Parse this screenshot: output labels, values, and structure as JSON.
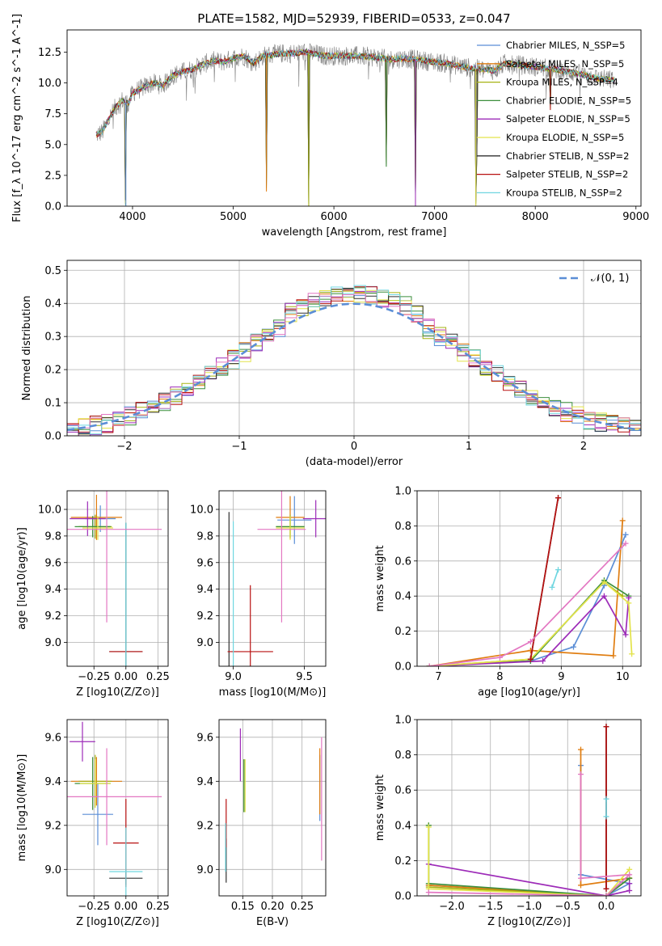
{
  "chart_data": [
    {
      "id": "spectrum",
      "type": "line",
      "title": "PLATE=1582, MJD=52939, FIBERID=0533, z=0.047",
      "xlabel": "wavelength [Angstrom, rest frame]",
      "ylabel": "Flux [f_λ 10^-17 erg cm^-2 s^-1 A^-1]",
      "xlim": [
        3350,
        9050
      ],
      "ylim": [
        0,
        14.3
      ],
      "xticks": [
        4000,
        5000,
        6000,
        7000,
        8000,
        9000
      ],
      "yticks": [
        0.0,
        2.5,
        5.0,
        7.5,
        10.0,
        12.5
      ],
      "grid": false,
      "legend_position": "top-right",
      "series": [
        {
          "name": "Chabrier MILES, N_SSP=5",
          "color": "#5b8ed6"
        },
        {
          "name": "Salpeter MILES, N_SSP=5",
          "color": "#e07d10"
        },
        {
          "name": "Kroupa MILES, N_SSP=4",
          "color": "#a6b312"
        },
        {
          "name": "Chabrier ELODIE, N_SSP=5",
          "color": "#3c8f3c"
        },
        {
          "name": "Salpeter ELODIE, N_SSP=5",
          "color": "#9d2bb8"
        },
        {
          "name": "Kroupa ELODIE, N_SSP=5",
          "color": "#e3e34a"
        },
        {
          "name": "Chabrier STELIB, N_SSP=2",
          "color": "#303030"
        },
        {
          "name": "Salpeter STELIB, N_SSP=2",
          "color": "#b81010"
        },
        {
          "name": "Kroupa STELIB, N_SSP=2",
          "color": "#6fd6e0"
        }
      ],
      "data_color": "#808080",
      "continuum": [
        [
          3640,
          5.8
        ],
        [
          3700,
          6.0
        ],
        [
          3760,
          7.0
        ],
        [
          3830,
          8.0
        ],
        [
          3900,
          8.6
        ],
        [
          3960,
          8.3
        ],
        [
          4000,
          9.2
        ],
        [
          4100,
          9.6
        ],
        [
          4200,
          10.0
        ],
        [
          4300,
          9.8
        ],
        [
          4400,
          10.6
        ],
        [
          4500,
          10.9
        ],
        [
          4600,
          11.1
        ],
        [
          4700,
          11.5
        ],
        [
          4800,
          11.8
        ],
        [
          4900,
          11.7
        ],
        [
          5000,
          12.0
        ],
        [
          5100,
          12.2
        ],
        [
          5200,
          11.6
        ],
        [
          5300,
          12.2
        ],
        [
          5400,
          12.3
        ],
        [
          5500,
          12.4
        ],
        [
          5600,
          12.4
        ],
        [
          5700,
          12.5
        ],
        [
          5800,
          12.4
        ],
        [
          5900,
          12.2
        ],
        [
          6000,
          12.2
        ],
        [
          6200,
          12.2
        ],
        [
          6400,
          12.1
        ],
        [
          6550,
          11.9
        ],
        [
          6700,
          12.0
        ],
        [
          6900,
          11.8
        ],
        [
          7100,
          11.6
        ],
        [
          7300,
          11.3
        ],
        [
          7450,
          11.1
        ],
        [
          7600,
          11.0
        ],
        [
          7700,
          11.6
        ],
        [
          7800,
          11.5
        ],
        [
          8000,
          11.3
        ],
        [
          8200,
          11.1
        ],
        [
          8400,
          10.8
        ],
        [
          8600,
          10.4
        ],
        [
          8790,
          10.2
        ]
      ],
      "absorption_dips": [
        [
          3934,
          0.0
        ],
        [
          5330,
          1.2
        ],
        [
          5750,
          0.0
        ],
        [
          6520,
          3.2
        ],
        [
          6810,
          0.0
        ],
        [
          7410,
          0.0
        ],
        [
          7420,
          4.0
        ],
        [
          8150,
          7.8
        ]
      ]
    },
    {
      "id": "residuals",
      "type": "line",
      "xlabel": "(data-model)/error",
      "ylabel": "Normed distribution",
      "xlim": [
        -2.5,
        2.5
      ],
      "ylim": [
        0,
        0.53
      ],
      "xticks": [
        -2,
        -1,
        0,
        1,
        2
      ],
      "yticks": [
        0.0,
        0.1,
        0.2,
        0.3,
        0.4,
        0.5
      ],
      "grid": true,
      "legend_position": "top-right",
      "reference_curve": {
        "name": "𝒩(0, 1)",
        "color": "#5b8ed6",
        "style": "dashed"
      },
      "bin_width": 0.1
    },
    {
      "id": "age-vs-Z",
      "type": "scatter",
      "xlabel": "Z [log10(Z/Z⊙)]",
      "ylabel": "age  [log10(age/yr)]",
      "xlim": [
        -0.46,
        0.33
      ],
      "ylim": [
        8.82,
        10.14
      ],
      "xticks": [
        -0.25,
        0.0,
        0.25
      ],
      "yticks": [
        9.0,
        9.2,
        9.4,
        9.6,
        9.8,
        10.0
      ],
      "grid": true,
      "points": [
        {
          "series": "Chabrier MILES, N_SSP=5",
          "x": -0.2,
          "xerr": 0.12,
          "y": 9.93,
          "yerr": 0.1
        },
        {
          "series": "Salpeter MILES, N_SSP=5",
          "x": -0.23,
          "xerr": 0.2,
          "y": 9.94,
          "yerr": 0.17
        },
        {
          "series": "Kroupa MILES, N_SSP=4",
          "x": -0.24,
          "xerr": 0.13,
          "y": 9.87,
          "yerr": 0.09
        },
        {
          "series": "Chabrier ELODIE, N_SSP=5",
          "x": -0.26,
          "xerr": 0.14,
          "y": 9.87,
          "yerr": 0.08
        },
        {
          "series": "Salpeter ELODIE, N_SSP=5",
          "x": -0.3,
          "xerr": 0.14,
          "y": 9.93,
          "yerr": 0.13
        },
        {
          "series": "Kroupa ELODIE, N_SSP=5",
          "x": -0.22,
          "xerr": 0.12,
          "y": 9.86,
          "yerr": 0.09
        },
        {
          "series": "Chabrier STELIB, N_SSP=2",
          "x": 0.0,
          "xerr": 0.13,
          "y": 8.93,
          "yerr": 0.97
        },
        {
          "series": "Salpeter STELIB, N_SSP=2",
          "x": 0.0,
          "xerr": 0.13,
          "y": 8.93,
          "yerr": 0.0
        },
        {
          "series": "Kroupa STELIB, N_SSP=2",
          "x": 0.0,
          "xerr": 0.0,
          "y": 8.93,
          "yerr": 0.97
        },
        {
          "series": "pink",
          "x": -0.15,
          "xerr": 0.43,
          "y": 9.85,
          "yerr": 0.7
        }
      ]
    },
    {
      "id": "age-vs-mass",
      "type": "scatter",
      "xlabel": "mass [log10(M/M⊙)]",
      "xlim": [
        8.9,
        9.65
      ],
      "ylim": [
        8.82,
        10.14
      ],
      "xticks": [
        9.0,
        9.5
      ],
      "yticks": [
        9.0,
        9.2,
        9.4,
        9.6,
        9.8,
        10.0
      ],
      "grid": true,
      "points": [
        {
          "series": "Chabrier MILES, N_SSP=5",
          "x": 9.43,
          "xerr": 0.12,
          "y": 9.92,
          "yerr": 0.18
        },
        {
          "series": "Salpeter MILES, N_SSP=5",
          "x": 9.4,
          "xerr": 0.1,
          "y": 9.94,
          "yerr": 0.16
        },
        {
          "series": "Kroupa MILES, N_SSP=4",
          "x": 9.4,
          "xerr": 0.1,
          "y": 9.87,
          "yerr": 0.09
        },
        {
          "series": "Chabrier ELODIE, N_SSP=5",
          "x": 9.4,
          "xerr": 0.1,
          "y": 9.87,
          "yerr": 0.08
        },
        {
          "series": "Salpeter ELODIE, N_SSP=5",
          "x": 9.58,
          "xerr": 0.09,
          "y": 9.93,
          "yerr": 0.14
        },
        {
          "series": "Kroupa ELODIE, N_SSP=5",
          "x": 9.4,
          "xerr": 0.1,
          "y": 9.86,
          "yerr": 0.09
        },
        {
          "series": "Chabrier STELIB, N_SSP=2",
          "x": 8.97,
          "xerr": 0.0,
          "y": 8.93,
          "yerr": 1.05
        },
        {
          "series": "Salpeter STELIB, N_SSP=2",
          "x": 9.12,
          "xerr": 0.16,
          "y": 8.93,
          "yerr": 0.5
        },
        {
          "series": "Kroupa STELIB, N_SSP=2",
          "x": 9.0,
          "xerr": 0.0,
          "y": 8.93,
          "yerr": 0.98
        },
        {
          "series": "pink",
          "x": 9.34,
          "xerr": 0.17,
          "y": 9.85,
          "yerr": 0.7
        }
      ]
    },
    {
      "id": "mass-weight-vs-age",
      "type": "line",
      "xlabel": "age  [log10(age/yr)]",
      "ylabel": "mass weight",
      "xlim": [
        6.65,
        10.3
      ],
      "ylim": [
        0,
        1
      ],
      "xticks": [
        7,
        8,
        9,
        10
      ],
      "yticks": [
        0.0,
        0.2,
        0.4,
        0.6,
        0.8,
        1.0
      ],
      "grid": true,
      "series": [
        {
          "name": "Chabrier MILES, N_SSP=5",
          "x": [
            6.85,
            8.5,
            9.2,
            9.7,
            10.05
          ],
          "y": [
            0.0,
            0.03,
            0.11,
            0.46,
            0.75
          ]
        },
        {
          "name": "Salpeter MILES, N_SSP=5",
          "x": [
            6.85,
            8.5,
            9.85,
            10.0
          ],
          "y": [
            0.0,
            0.09,
            0.06,
            0.83
          ]
        },
        {
          "name": "Kroupa MILES, N_SSP=4",
          "x": [
            6.85,
            8.5,
            9.7,
            10.0
          ],
          "y": [
            0.0,
            0.04,
            0.48,
            0.4
          ]
        },
        {
          "name": "Chabrier ELODIE, N_SSP=5",
          "x": [
            6.85,
            8.5,
            9.7,
            10.1
          ],
          "y": [
            0.0,
            0.03,
            0.49,
            0.4
          ]
        },
        {
          "name": "Salpeter ELODIE, N_SSP=5",
          "x": [
            6.85,
            8.7,
            9.7,
            10.05,
            10.1
          ],
          "y": [
            0.0,
            0.03,
            0.4,
            0.18,
            0.39
          ]
        },
        {
          "name": "Kroupa ELODIE, N_SSP=5",
          "x": [
            6.85,
            8.5,
            9.7,
            10.1,
            10.15
          ],
          "y": [
            0.0,
            0.04,
            0.48,
            0.36,
            0.07
          ]
        },
        {
          "name": "Chabrier STELIB, N_SSP=2",
          "x": [
            8.5,
            8.95
          ],
          "y": [
            0.04,
            0.96
          ]
        },
        {
          "name": "Salpeter STELIB, N_SSP=2",
          "x": [
            8.5,
            8.95
          ],
          "y": [
            0.04,
            0.96
          ]
        },
        {
          "name": "Kroupa STELIB, N_SSP=2",
          "x": [
            8.85,
            8.95
          ],
          "y": [
            0.45,
            0.55
          ]
        },
        {
          "name": "pink",
          "x": [
            6.85,
            8.0,
            8.5,
            10.05
          ],
          "y": [
            0.0,
            0.05,
            0.14,
            0.7
          ]
        }
      ]
    },
    {
      "id": "mass-vs-Z",
      "type": "scatter",
      "xlabel": "Z [log10(Z/Z⊙)]",
      "ylabel": "mass [log10(M/M⊙)]",
      "xlim": [
        -0.46,
        0.33
      ],
      "ylim": [
        8.88,
        9.68
      ],
      "xticks": [
        -0.25,
        0.0,
        0.25
      ],
      "yticks": [
        9.0,
        9.2,
        9.4,
        9.6
      ],
      "grid": true,
      "points": [
        {
          "series": "Chabrier MILES, N_SSP=5",
          "x": -0.22,
          "xerr": 0.12,
          "y": 9.25,
          "yerr": 0.14
        },
        {
          "series": "Salpeter MILES, N_SSP=5",
          "x": -0.23,
          "xerr": 0.2,
          "y": 9.4,
          "yerr": 0.11
        },
        {
          "series": "Kroupa MILES, N_SSP=4",
          "x": -0.24,
          "xerr": 0.13,
          "y": 9.4,
          "yerr": 0.12
        },
        {
          "series": "Chabrier ELODIE, N_SSP=5",
          "x": -0.26,
          "xerr": 0.14,
          "y": 9.39,
          "yerr": 0.12
        },
        {
          "series": "Salpeter ELODIE, N_SSP=5",
          "x": -0.34,
          "xerr": 0.1,
          "y": 9.58,
          "yerr": 0.09
        },
        {
          "series": "Kroupa ELODIE, N_SSP=5",
          "x": -0.24,
          "xerr": 0.12,
          "y": 9.39,
          "yerr": 0.11
        },
        {
          "series": "Chabrier STELIB, N_SSP=2",
          "x": 0.0,
          "xerr": 0.13,
          "y": 8.96,
          "yerr": 0.03
        },
        {
          "series": "Salpeter STELIB, N_SSP=2",
          "x": 0.0,
          "xerr": 0.1,
          "y": 9.12,
          "yerr": 0.2
        },
        {
          "series": "Kroupa STELIB, N_SSP=2",
          "x": 0.0,
          "xerr": 0.13,
          "y": 8.99,
          "yerr": 0.2
        },
        {
          "series": "pink",
          "x": -0.15,
          "xerr": 0.43,
          "y": 9.33,
          "yerr": 0.22
        }
      ]
    },
    {
      "id": "mass-vs-EBV",
      "type": "scatter",
      "xlabel": "E(B-V)",
      "xlim": [
        0.11,
        0.29
      ],
      "ylim": [
        8.88,
        9.68
      ],
      "xticks": [
        0.15,
        0.2,
        0.25
      ],
      "yticks": [
        9.0,
        9.2,
        9.4,
        9.6
      ],
      "grid": true,
      "points": [
        {
          "series": "Chabrier MILES, N_SSP=5",
          "x": 0.28,
          "y": 9.37,
          "yerr": 0.15
        },
        {
          "series": "Salpeter MILES, N_SSP=5",
          "x": 0.28,
          "y": 9.4,
          "yerr": 0.15
        },
        {
          "series": "Kroupa MILES, N_SSP=4",
          "x": 0.152,
          "y": 9.38,
          "yerr": 0.12
        },
        {
          "series": "Chabrier ELODIE, N_SSP=5",
          "x": 0.152,
          "y": 9.38,
          "yerr": 0.12
        },
        {
          "series": "Salpeter ELODIE, N_SSP=5",
          "x": 0.146,
          "y": 9.52,
          "yerr": 0.12
        },
        {
          "series": "Kroupa ELODIE, N_SSP=5",
          "x": 0.154,
          "y": 9.38,
          "yerr": 0.12
        },
        {
          "series": "Chabrier STELIB, N_SSP=2",
          "x": 0.122,
          "y": 9.04,
          "yerr": 0.1
        },
        {
          "series": "Salpeter STELIB, N_SSP=2",
          "x": 0.122,
          "y": 9.21,
          "yerr": 0.11
        },
        {
          "series": "Kroupa STELIB, N_SSP=2",
          "x": 0.121,
          "y": 9.1,
          "yerr": 0.11
        },
        {
          "series": "pink",
          "x": 0.283,
          "y": 9.32,
          "yerr": 0.28
        }
      ]
    },
    {
      "id": "mass-weight-vs-Z",
      "type": "line",
      "xlabel": "Z [log10(Z/Z⊙)]",
      "ylabel": "mass weight",
      "xlim": [
        -2.45,
        0.45
      ],
      "ylim": [
        0,
        1
      ],
      "xticks": [
        -2.0,
        -1.5,
        -1.0,
        -0.5,
        0.0
      ],
      "yticks": [
        0.0,
        0.2,
        0.4,
        0.6,
        0.8,
        1.0
      ],
      "grid": true,
      "series": [
        {
          "name": "Chabrier MILES, N_SSP=5",
          "x": [
            -2.3,
            0.0,
            0.3,
            -0.33,
            -0.33
          ],
          "y": [
            0.06,
            0.0,
            0.07,
            0.12,
            0.74
          ]
        },
        {
          "name": "Salpeter MILES, N_SSP=5",
          "x": [
            -2.3,
            0.0,
            0.3,
            -0.33,
            -0.33
          ],
          "y": [
            0.06,
            0.0,
            0.1,
            0.06,
            0.83
          ]
        },
        {
          "name": "Kroupa MILES, N_SSP=4",
          "x": [
            -2.3,
            -2.3,
            0.0,
            0.3
          ],
          "y": [
            0.4,
            0.05,
            0.0,
            0.1
          ]
        },
        {
          "name": "Chabrier ELODIE, N_SSP=5",
          "x": [
            -2.3,
            -2.3,
            0.0,
            0.3
          ],
          "y": [
            0.4,
            0.07,
            0.0,
            0.1
          ]
        },
        {
          "name": "Salpeter ELODIE, N_SSP=5",
          "x": [
            -2.3,
            0.0,
            0.3,
            0.3
          ],
          "y": [
            0.18,
            0.0,
            0.03,
            0.07
          ]
        },
        {
          "name": "Kroupa ELODIE, N_SSP=5",
          "x": [
            -2.3,
            -2.3,
            0.0,
            0.3
          ],
          "y": [
            0.39,
            0.04,
            0.0,
            0.15
          ]
        },
        {
          "name": "Chabrier STELIB, N_SSP=2",
          "x": [
            0.0,
            0.0
          ],
          "y": [
            0.04,
            0.96
          ]
        },
        {
          "name": "Salpeter STELIB, N_SSP=2",
          "x": [
            0.0,
            0.0
          ],
          "y": [
            0.04,
            0.96
          ]
        },
        {
          "name": "Kroupa STELIB, N_SSP=2",
          "x": [
            0.0,
            0.0
          ],
          "y": [
            0.45,
            0.55
          ]
        },
        {
          "name": "pink",
          "x": [
            -2.3,
            0.0,
            0.3,
            -0.33,
            -0.33
          ],
          "y": [
            0.02,
            0.0,
            0.12,
            0.1,
            0.69
          ]
        }
      ]
    }
  ],
  "colors": {
    "pink": "#e377c2",
    "axis": "#000000",
    "grid": "#b0b0b0"
  }
}
